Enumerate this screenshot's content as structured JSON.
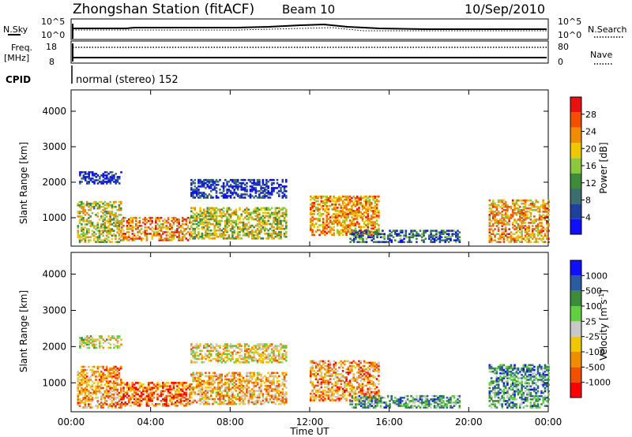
{
  "header": {
    "station": "Zhongshan Station (fitACF)",
    "beam": "Beam 10",
    "date": "10/Sep/2010"
  },
  "status_panels": {
    "nsky_label": "N.Sky",
    "nsky_top": "10^5",
    "nsky_bottom": "10^0",
    "nsearch_label": "N.Search",
    "nsearch_top": "10^5",
    "nsearch_bottom": "10^0",
    "freq_label": "Freq.",
    "freq_unit": "[MHz]",
    "freq_top": "18",
    "freq_bottom": "8",
    "nave_label": "Nave",
    "nave_top": "80",
    "nave_bottom": "0",
    "cpid_label": "CPID",
    "cpid_text": "normal (stereo) 152"
  },
  "colors": {
    "power": [
      "#1010ff",
      "#2040a0",
      "#3c6e6e",
      "#3c8c3c",
      "#8cc83c",
      "#f0c800",
      "#f08c00",
      "#f05000",
      "#e81010"
    ],
    "velocity": [
      "#ff0000",
      "#f05000",
      "#f08c00",
      "#f0c800",
      "#c8c8c8",
      "#60d040",
      "#3c8c3c",
      "#2a5aa0",
      "#1010ff"
    ]
  },
  "chart_data": [
    {
      "type": "heatmap",
      "name": "power",
      "xlabel": "",
      "ylabel": "Slant Range [km]",
      "xlim": [
        "00:00",
        "00:00"
      ],
      "ylim": [
        200,
        4600
      ],
      "yticks": [
        "1000",
        "2000",
        "3000",
        "4000"
      ],
      "colorbar": {
        "label": "Power [dB]",
        "ticks": [
          "4",
          "8",
          "12",
          "16",
          "20",
          "24",
          "28"
        ],
        "range": [
          0,
          32
        ]
      },
      "regions": [
        {
          "t0": 0.3,
          "t1": 2.5,
          "r0": 300,
          "r1": 1450,
          "level": 0.55
        },
        {
          "t0": 2.5,
          "t1": 6.0,
          "r0": 350,
          "r1": 1000,
          "level": 0.75
        },
        {
          "t0": 6.0,
          "t1": 10.8,
          "r0": 400,
          "r1": 1300,
          "level": 0.55
        },
        {
          "t0": 0.4,
          "t1": 2.5,
          "r0": 1950,
          "r1": 2300,
          "level": 0.12
        },
        {
          "t0": 6.0,
          "t1": 10.8,
          "r0": 1550,
          "r1": 2050,
          "level": 0.12
        },
        {
          "t0": 12.0,
          "t1": 15.5,
          "r0": 500,
          "r1": 1600,
          "level": 0.7
        },
        {
          "t0": 14.0,
          "t1": 19.5,
          "r0": 300,
          "r1": 650,
          "level": 0.25
        },
        {
          "t0": 21.0,
          "t1": 24.0,
          "r0": 300,
          "r1": 1500,
          "level": 0.7
        }
      ]
    },
    {
      "type": "heatmap",
      "name": "velocity",
      "xlabel": "Time UT",
      "ylabel": "Slant Range [km]",
      "xlim": [
        "00:00",
        "00:00"
      ],
      "xticks": [
        "00:00",
        "04:00",
        "08:00",
        "12:00",
        "16:00",
        "20:00",
        "00:00"
      ],
      "ylim": [
        200,
        4600
      ],
      "yticks": [
        "1000",
        "2000",
        "3000",
        "4000"
      ],
      "colorbar": {
        "label": "Velocity [m s^-1]",
        "ticks": [
          "1000",
          "500",
          "100",
          "25",
          "-25",
          "-100",
          "-500",
          "-1000"
        ],
        "range": [
          -1200,
          1200
        ]
      },
      "regions": [
        {
          "t0": 0.3,
          "t1": 2.5,
          "r0": 300,
          "r1": 1450,
          "level": 0.3
        },
        {
          "t0": 2.5,
          "t1": 6.0,
          "r0": 350,
          "r1": 1000,
          "level": 0.2
        },
        {
          "t0": 6.0,
          "t1": 10.8,
          "r0": 400,
          "r1": 1300,
          "level": 0.35
        },
        {
          "t0": 0.4,
          "t1": 2.5,
          "r0": 1950,
          "r1": 2300,
          "level": 0.5
        },
        {
          "t0": 6.0,
          "t1": 10.8,
          "r0": 1550,
          "r1": 2050,
          "level": 0.42
        },
        {
          "t0": 12.0,
          "t1": 15.5,
          "r0": 500,
          "r1": 1600,
          "level": 0.3
        },
        {
          "t0": 14.0,
          "t1": 19.5,
          "r0": 300,
          "r1": 650,
          "level": 0.7
        },
        {
          "t0": 21.0,
          "t1": 24.0,
          "r0": 300,
          "r1": 1500,
          "level": 0.72
        }
      ]
    }
  ]
}
